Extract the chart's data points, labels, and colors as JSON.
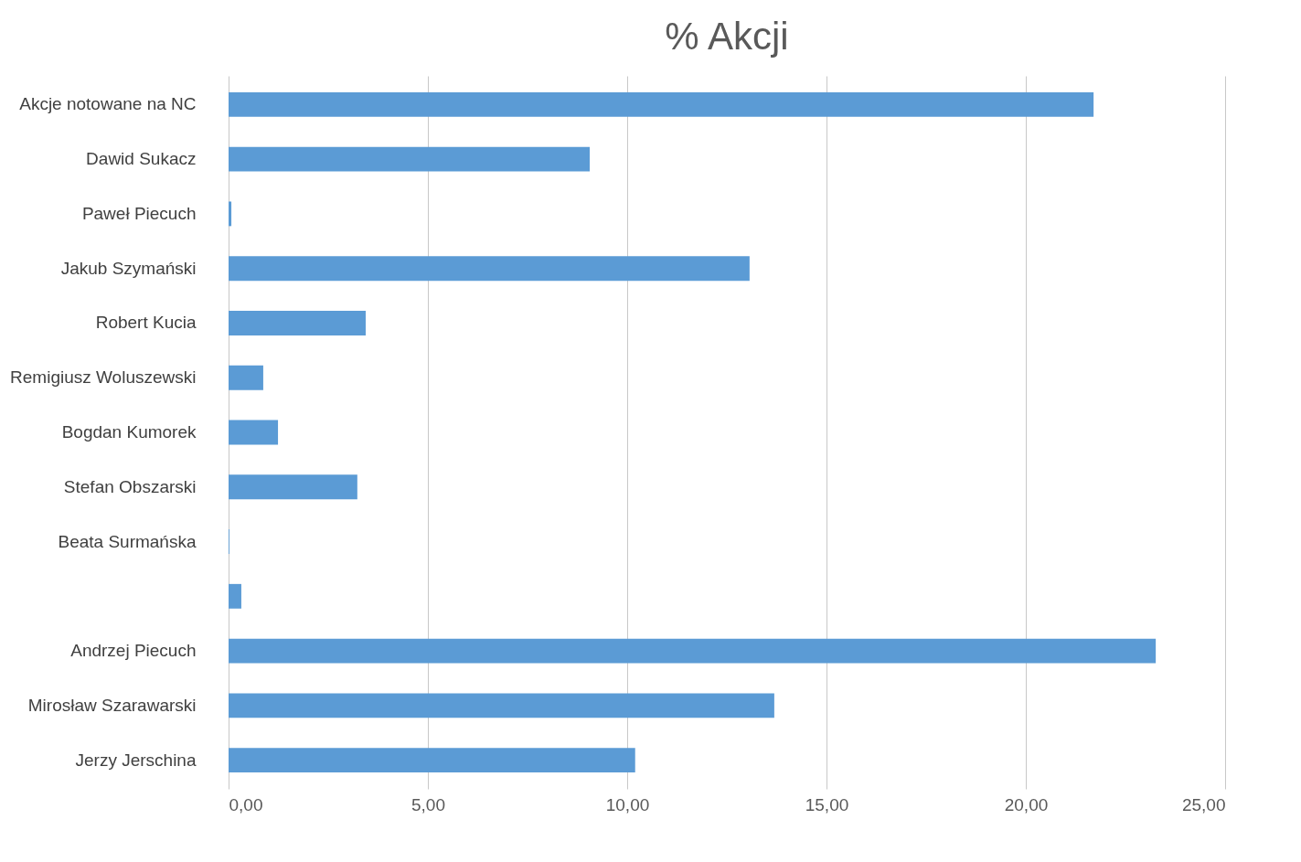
{
  "chart_data": {
    "type": "bar",
    "orientation": "horizontal",
    "title": "% Akcji",
    "categories": [
      "Akcje notowane na NC",
      "Dawid Sukacz",
      "Paweł Piecuch",
      "Jakub Szymański",
      "Robert Kucia",
      "Remigiusz Woluszewski",
      "Bogdan Kumorek",
      "Stefan Obszarski",
      "Beata Surmańska",
      null,
      "Andrzej Piecuch",
      "Mirosław Szarawarski",
      "Jerzy Jerschina"
    ],
    "values": [
      21.7,
      9.06,
      0.07,
      13.07,
      3.44,
      0.87,
      1.24,
      3.23,
      0.02,
      0.32,
      23.26,
      13.69,
      10.2
    ],
    "color": "#5b9bd5",
    "xlim": [
      0,
      25
    ],
    "xticks": [
      {
        "value": 0,
        "label": "0,00"
      },
      {
        "value": 5,
        "label": "5,00"
      },
      {
        "value": 10,
        "label": "10,00"
      },
      {
        "value": 15,
        "label": "15,00"
      },
      {
        "value": 20,
        "label": "20,00"
      },
      {
        "value": 25,
        "label": "25,00"
      }
    ],
    "grid": "x"
  }
}
